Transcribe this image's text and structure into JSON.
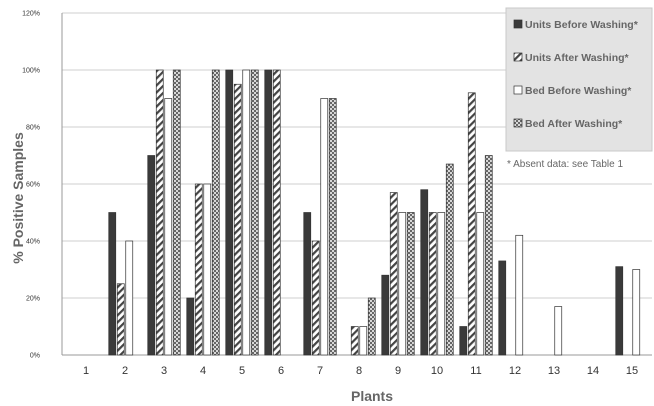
{
  "chart_data": {
    "type": "bar",
    "xlabel": "Plants",
    "ylabel": "% Positive Samples",
    "ylim": [
      0,
      120
    ],
    "yticks": [
      "0%",
      "20%",
      "40%",
      "60%",
      "80%",
      "100%",
      "120%"
    ],
    "categories": [
      "1",
      "2",
      "3",
      "4",
      "5",
      "6",
      "7",
      "8",
      "9",
      "10",
      "11",
      "12",
      "13",
      "14",
      "15"
    ],
    "grid": true,
    "legend_position": "top-right",
    "series": [
      {
        "name": "Units Before Washing*",
        "color": "#3a3a3a",
        "pattern": "solid",
        "values": [
          null,
          50,
          70,
          20,
          100,
          100,
          50,
          null,
          28,
          58,
          10,
          33,
          null,
          null,
          31
        ]
      },
      {
        "name": "Units After Washing*",
        "color": "#555555",
        "pattern": "diagonal",
        "values": [
          null,
          25,
          100,
          60,
          95,
          100,
          40,
          10,
          57,
          50,
          92,
          null,
          null,
          null,
          null
        ]
      },
      {
        "name": "Bed Before Washing*",
        "color": "#ffffff",
        "pattern": "empty",
        "values": [
          null,
          40,
          90,
          60,
          100,
          null,
          90,
          10,
          50,
          50,
          50,
          42,
          17,
          null,
          30
        ]
      },
      {
        "name": "Bed After Washing*",
        "color": "#888888",
        "pattern": "crosshatch",
        "values": [
          null,
          null,
          100,
          100,
          100,
          null,
          90,
          20,
          50,
          67,
          70,
          null,
          null,
          null,
          null
        ]
      }
    ],
    "note": "* Absent data:  see Table 1"
  }
}
